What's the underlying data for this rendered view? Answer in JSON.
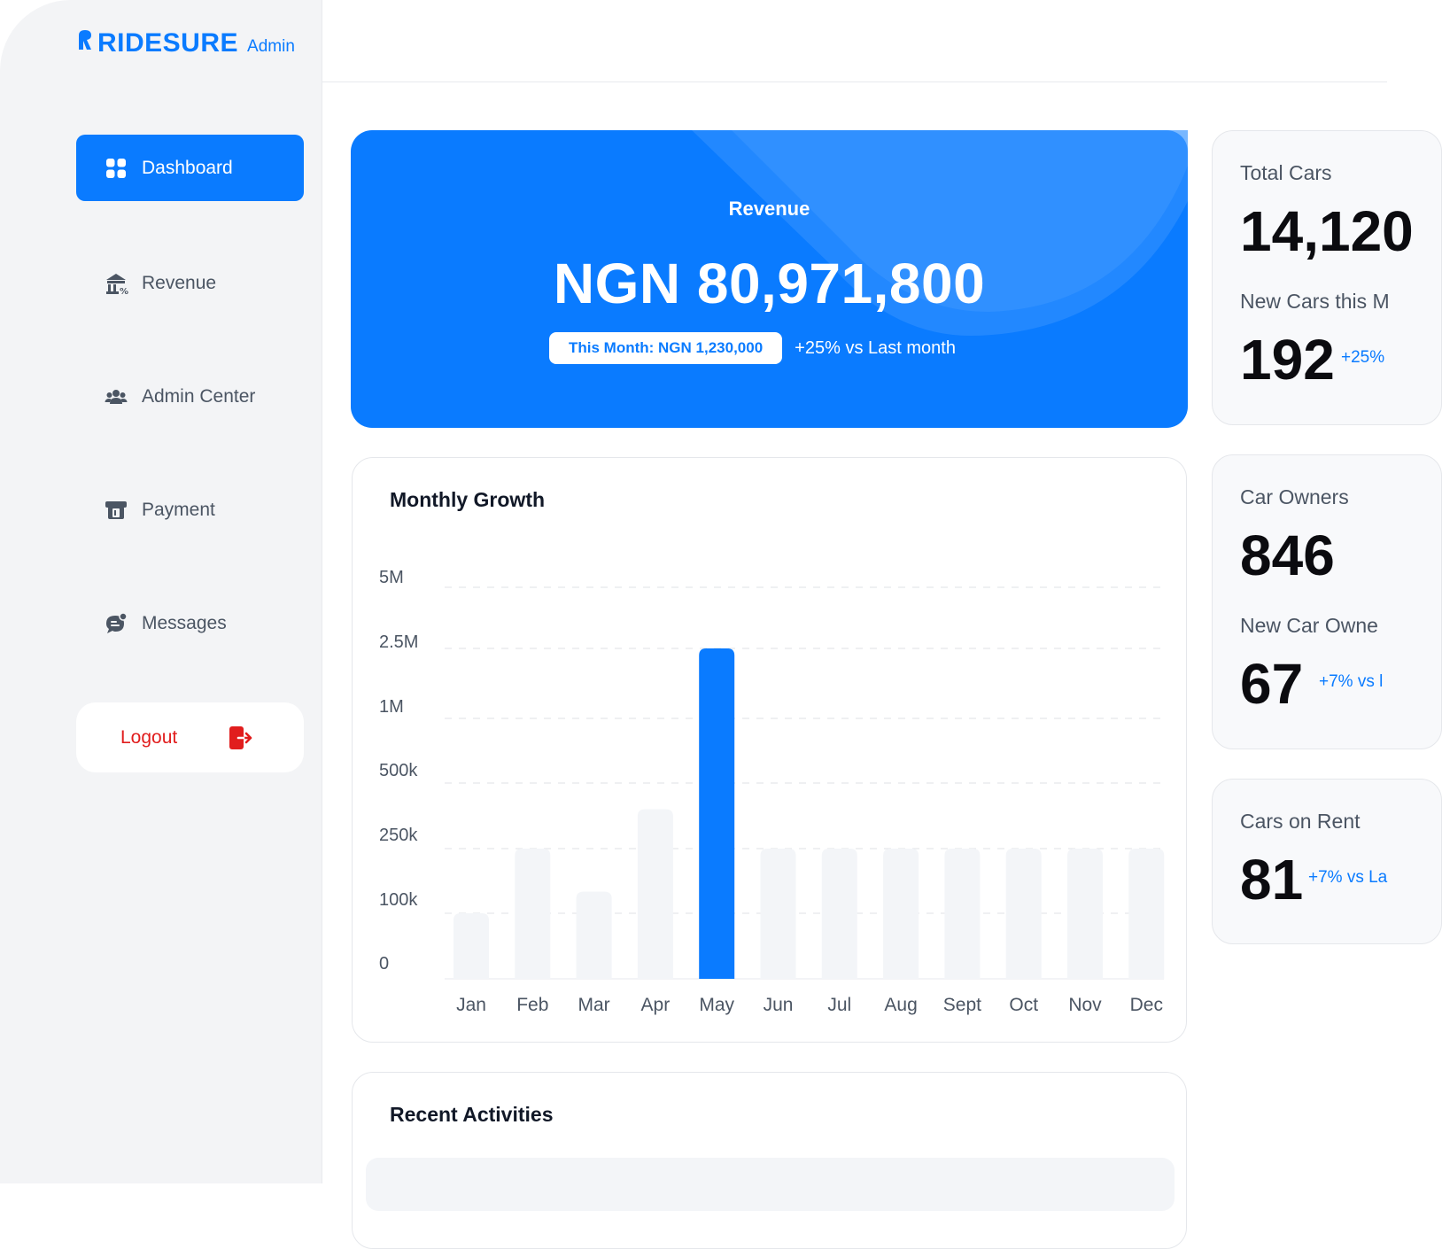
{
  "brand": {
    "name": "RIDESURE",
    "suffix": "Admin",
    "color": "#0a7bff"
  },
  "sidebar": {
    "items": [
      {
        "label": "Dashboard",
        "icon": "grid-icon",
        "active": true
      },
      {
        "label": "Revenue",
        "icon": "bank-icon",
        "active": false
      },
      {
        "label": "Admin Center",
        "icon": "users-icon",
        "active": false
      },
      {
        "label": "Payment",
        "icon": "card-icon",
        "active": false
      },
      {
        "label": "Messages",
        "icon": "chat-icon",
        "active": false
      }
    ],
    "logout": {
      "label": "Logout",
      "icon": "logout-icon",
      "color": "#e11d1d"
    }
  },
  "revenue": {
    "label": "Revenue",
    "amount": "NGN 80,971,800",
    "this_month": "This Month: NGN 1,230,000",
    "change": "+25% vs Last month"
  },
  "monthly_growth": {
    "title": "Monthly Growth"
  },
  "chart_data": {
    "type": "bar",
    "title": "Monthly Growth",
    "categories": [
      "Jan",
      "Feb",
      "Mar",
      "Apr",
      "May",
      "Jun",
      "Jul",
      "Aug",
      "Sept",
      "Oct",
      "Nov",
      "Dec"
    ],
    "y_ticks": [
      "5M",
      "2.5M",
      "1M",
      "500k",
      "250k",
      "100k",
      "0"
    ],
    "y_tick_values": [
      5000000,
      2500000,
      1000000,
      500000,
      250000,
      100000,
      0
    ],
    "values": [
      100000,
      250000,
      150000,
      400000,
      2500000,
      250000,
      250000,
      250000,
      250000,
      250000,
      250000,
      250000
    ],
    "highlight_index": 4,
    "highlight_color": "#0a7bff",
    "bar_color": "#f3f5f8",
    "grid": true
  },
  "recent_activities": {
    "title": "Recent Activities"
  },
  "stats": {
    "total_cars": {
      "label": "Total Cars",
      "value": "14,120",
      "sub_label": "New Cars this M",
      "sub_value": "192",
      "change": "+25%"
    },
    "car_owners": {
      "label": "Car Owners",
      "value": "846",
      "sub_label": "New Car Owne",
      "sub_value": "67",
      "change": "+7% vs l"
    },
    "cars_on_rent": {
      "label": "Cars on Rent",
      "value": "81",
      "change": "+7% vs La"
    }
  }
}
